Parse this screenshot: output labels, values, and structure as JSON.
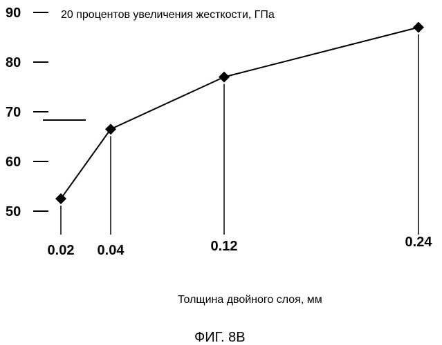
{
  "chart_data": {
    "type": "line",
    "title": "20 процентов увеличения жесткости,  ГПа",
    "xlabel": "Толщина двойного слоя,  мм",
    "ylabel": "",
    "x": [
      0.02,
      0.04,
      0.12,
      0.24
    ],
    "x_tick_labels": [
      "0.02",
      "0.04",
      "0.12",
      "0.24"
    ],
    "yticks": [
      50,
      60,
      70,
      80,
      90
    ],
    "y_tick_labels": [
      "50",
      "60",
      "70",
      "80",
      "90"
    ],
    "ylim": [
      50,
      90
    ],
    "series": [
      {
        "values": [
          52.5,
          66.5,
          77,
          87
        ],
        "marker": "diamond",
        "color": "#000000"
      }
    ],
    "grid": false,
    "legend": "none"
  },
  "caption": "ФИГ. 8B"
}
